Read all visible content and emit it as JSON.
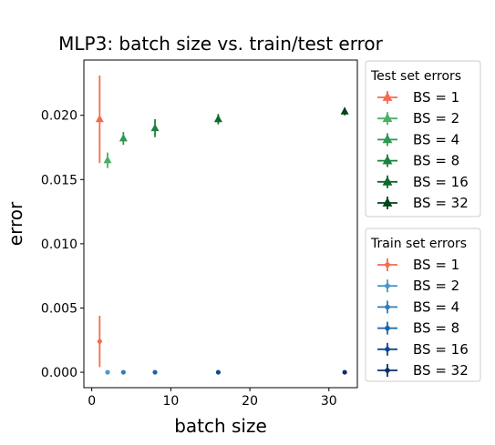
{
  "chart_data": {
    "type": "scatter",
    "title": "MLP3: batch size vs. train/test error",
    "xlabel": "batch size",
    "ylabel": "error",
    "xlim": [
      -1,
      33.6
    ],
    "ylim": [
      -0.0012,
      0.0243
    ],
    "xticks": [
      0,
      10,
      20,
      30
    ],
    "xtick_labels": [
      "0",
      "10",
      "20",
      "30"
    ],
    "yticks": [
      0.0,
      0.005,
      0.01,
      0.015,
      0.02
    ],
    "ytick_labels": [
      "0.000",
      "0.005",
      "0.010",
      "0.015",
      "0.020"
    ],
    "grid": false,
    "legend_placement": "outside-right",
    "legends": [
      {
        "title": "Test set errors",
        "marker": "triangle",
        "entries": [
          {
            "name": "BS = 1",
            "color": "#f26c4f"
          },
          {
            "name": "BS = 2",
            "color": "#4bb062"
          },
          {
            "name": "BS = 4",
            "color": "#2e9950"
          },
          {
            "name": "BS = 8",
            "color": "#1d8040"
          },
          {
            "name": "BS = 16",
            "color": "#0b6a2c"
          },
          {
            "name": "BS = 32",
            "color": "#00441b"
          }
        ]
      },
      {
        "title": "Train set errors",
        "marker": "circle",
        "entries": [
          {
            "name": "BS = 1",
            "color": "#f26c4f"
          },
          {
            "name": "BS = 2",
            "color": "#4a98c9"
          },
          {
            "name": "BS = 4",
            "color": "#2e7ebc"
          },
          {
            "name": "BS = 8",
            "color": "#1764ab"
          },
          {
            "name": "BS = 16",
            "color": "#0a4a90"
          },
          {
            "name": "BS = 32",
            "color": "#08306b"
          }
        ]
      }
    ],
    "series": [
      {
        "group": "test",
        "marker": "triangle",
        "points": [
          {
            "x": 1,
            "y": 0.0197,
            "err": 0.0034,
            "color": "#f26c4f"
          },
          {
            "x": 2,
            "y": 0.0165,
            "err": 0.0006,
            "color": "#4bb062"
          },
          {
            "x": 4,
            "y": 0.0182,
            "err": 0.0005,
            "color": "#2e9950"
          },
          {
            "x": 8,
            "y": 0.019,
            "err": 0.0007,
            "color": "#1d8040"
          },
          {
            "x": 16,
            "y": 0.0197,
            "err": 0.0004,
            "color": "#0b6a2c"
          },
          {
            "x": 32,
            "y": 0.0203,
            "err": 0.0003,
            "color": "#00441b"
          }
        ]
      },
      {
        "group": "train",
        "marker": "circle",
        "points": [
          {
            "x": 1,
            "y": 0.0024,
            "err": 0.002,
            "color": "#f26c4f"
          },
          {
            "x": 2,
            "y": 0.0,
            "err": 0.0,
            "color": "#4a98c9"
          },
          {
            "x": 4,
            "y": 0.0,
            "err": 0.0,
            "color": "#2e7ebc"
          },
          {
            "x": 8,
            "y": 0.0,
            "err": 0.0,
            "color": "#1764ab"
          },
          {
            "x": 16,
            "y": 0.0,
            "err": 0.0,
            "color": "#0a4a90"
          },
          {
            "x": 32,
            "y": 0.0,
            "err": 0.0,
            "color": "#08306b"
          }
        ]
      }
    ]
  }
}
